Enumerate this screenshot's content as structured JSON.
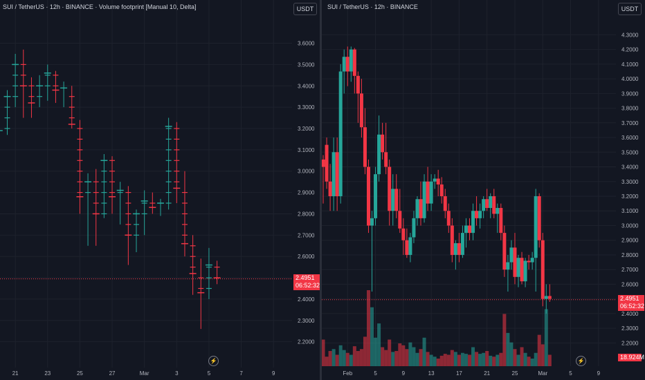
{
  "left_pane": {
    "title": "SUI / TetherUS · 12h · BINANCE · Volume footprint [Manual 10, Delta]",
    "currency_button": "USDT",
    "price_tag": "2.4951",
    "countdown": "06:52:32",
    "icon": "lightning-icon"
  },
  "right_pane": {
    "title": "SUI / TetherUS · 12h · BINANCE",
    "currency_button": "USDT",
    "price_tag": "2.4951",
    "countdown": "06:52:32",
    "volume_tag": "18.924M",
    "icon": "lightning-icon"
  },
  "colors": {
    "up": "#26a69a",
    "down": "#f23645",
    "background": "#131722",
    "grid": "#1e222d",
    "text": "#b2b5be"
  },
  "chart_data": [
    {
      "type": "footprint",
      "title": "SUI / TetherUS · 12h · BINANCE · Volume footprint [Manual 10, Delta]",
      "y_ticks": [
        "3.6000",
        "3.5000",
        "3.4000",
        "3.3000",
        "3.2000",
        "3.1000",
        "3.0000",
        "2.9000",
        "2.8000",
        "2.7000",
        "2.6000",
        "2.5000",
        "2.4000",
        "2.3000",
        "2.2000"
      ],
      "ylim": [
        2.16,
        3.66
      ],
      "x_ticks": [
        {
          "label": "21",
          "day": 21
        },
        {
          "label": "23",
          "day": 23
        },
        {
          "label": "25",
          "day": 25
        },
        {
          "label": "27",
          "day": 27
        },
        {
          "label": "Mar",
          "day": 29
        },
        {
          "label": "3",
          "day": 31
        },
        {
          "label": "5",
          "day": 33
        },
        {
          "label": "7",
          "day": 35
        },
        {
          "label": "9",
          "day": 37
        }
      ],
      "xlim": [
        20.05,
        38.15
      ],
      "last_price": 2.4951,
      "candles": [
        {
          "d": 20.0,
          "o": 3.17,
          "h": 3.22,
          "l": 3.14,
          "c": 3.19
        },
        {
          "d": 20.5,
          "o": 3.19,
          "h": 3.38,
          "l": 3.17,
          "c": 3.35
        },
        {
          "d": 21.0,
          "o": 3.35,
          "h": 3.55,
          "l": 3.3,
          "c": 3.5
        },
        {
          "d": 21.5,
          "o": 3.5,
          "h": 3.57,
          "l": 3.25,
          "c": 3.4
        },
        {
          "d": 22.0,
          "o": 3.4,
          "h": 3.44,
          "l": 3.25,
          "c": 3.32
        },
        {
          "d": 22.5,
          "o": 3.32,
          "h": 3.45,
          "l": 3.3,
          "c": 3.4
        },
        {
          "d": 23.0,
          "o": 3.4,
          "h": 3.5,
          "l": 3.33,
          "c": 3.46
        },
        {
          "d": 23.5,
          "o": 3.46,
          "h": 3.47,
          "l": 3.32,
          "c": 3.38
        },
        {
          "d": 24.0,
          "o": 3.38,
          "h": 3.42,
          "l": 3.3,
          "c": 3.39
        },
        {
          "d": 24.5,
          "o": 3.38,
          "h": 3.4,
          "l": 3.2,
          "c": 3.22
        },
        {
          "d": 25.0,
          "o": 3.22,
          "h": 3.24,
          "l": 2.8,
          "c": 2.88
        },
        {
          "d": 25.5,
          "o": 2.88,
          "h": 2.99,
          "l": 2.65,
          "c": 2.95
        },
        {
          "d": 26.0,
          "o": 2.95,
          "h": 3.01,
          "l": 2.65,
          "c": 2.8
        },
        {
          "d": 26.5,
          "o": 2.8,
          "h": 3.08,
          "l": 2.78,
          "c": 3.05
        },
        {
          "d": 27.0,
          "o": 3.05,
          "h": 3.07,
          "l": 2.8,
          "c": 2.88
        },
        {
          "d": 27.5,
          "o": 2.88,
          "h": 2.95,
          "l": 2.75,
          "c": 2.91
        },
        {
          "d": 28.0,
          "o": 2.9,
          "h": 2.93,
          "l": 2.56,
          "c": 2.7
        },
        {
          "d": 28.5,
          "o": 2.7,
          "h": 2.82,
          "l": 2.62,
          "c": 2.8
        },
        {
          "d": 29.0,
          "o": 2.8,
          "h": 2.91,
          "l": 2.7,
          "c": 2.86
        },
        {
          "d": 29.5,
          "o": 2.86,
          "h": 2.9,
          "l": 2.8,
          "c": 2.83
        },
        {
          "d": 30.0,
          "o": 2.83,
          "h": 2.87,
          "l": 2.79,
          "c": 2.85
        },
        {
          "d": 30.5,
          "o": 2.85,
          "h": 3.25,
          "l": 2.82,
          "c": 3.21
        },
        {
          "d": 31.0,
          "o": 3.21,
          "h": 3.23,
          "l": 2.85,
          "c": 2.92
        },
        {
          "d": 31.5,
          "o": 2.92,
          "h": 3.0,
          "l": 2.6,
          "c": 2.66
        },
        {
          "d": 32.0,
          "o": 2.66,
          "h": 2.7,
          "l": 2.42,
          "c": 2.52
        },
        {
          "d": 32.5,
          "o": 2.52,
          "h": 2.59,
          "l": 2.26,
          "c": 2.43
        },
        {
          "d": 33.0,
          "o": 2.43,
          "h": 2.64,
          "l": 2.4,
          "c": 2.56
        },
        {
          "d": 33.5,
          "o": 2.56,
          "h": 2.58,
          "l": 2.47,
          "c": 2.5
        }
      ]
    },
    {
      "type": "candlestick",
      "title": "SUI / TetherUS · 12h · BINANCE",
      "y_ticks": [
        "4.3000",
        "4.2000",
        "4.1000",
        "4.0000",
        "3.9000",
        "3.8000",
        "3.7000",
        "3.6000",
        "3.5000",
        "3.4000",
        "3.3000",
        "3.2000",
        "3.1000",
        "3.0000",
        "2.9000",
        "2.8000",
        "2.7000",
        "2.6000",
        "2.5000",
        "2.4000",
        "2.3000",
        "2.2000"
      ],
      "ylim": [
        2.15,
        4.33
      ],
      "x_ticks": [
        {
          "label": "Feb",
          "day": 31
        },
        {
          "label": "5",
          "day": 35
        },
        {
          "label": "9",
          "day": 39
        },
        {
          "label": "13",
          "day": 43
        },
        {
          "label": "17",
          "day": 47
        },
        {
          "label": "21",
          "day": 51
        },
        {
          "label": "25",
          "day": 55
        },
        {
          "label": "Mar",
          "day": 59
        },
        {
          "label": "5",
          "day": 63
        },
        {
          "label": "9",
          "day": 67
        }
      ],
      "xlim": [
        27.3,
        69.5
      ],
      "last_price": 2.4951,
      "volume_last": "18.924M",
      "candles": [
        {
          "d": 27.5,
          "o": 3.45,
          "h": 3.48,
          "l": 3.15,
          "c": 3.4,
          "v": 0.28
        },
        {
          "d": 28.0,
          "o": 3.55,
          "h": 3.6,
          "l": 3.25,
          "c": 3.3,
          "v": 0.1
        },
        {
          "d": 28.5,
          "o": 3.3,
          "h": 3.42,
          "l": 3.1,
          "c": 3.2,
          "v": 0.16
        },
        {
          "d": 29.0,
          "o": 3.2,
          "h": 3.6,
          "l": 3.1,
          "c": 3.5,
          "v": 0.18
        },
        {
          "d": 29.5,
          "o": 3.5,
          "h": 3.6,
          "l": 3.1,
          "c": 3.2,
          "v": 0.12
        },
        {
          "d": 30.0,
          "o": 3.2,
          "h": 4.1,
          "l": 3.15,
          "c": 4.05,
          "v": 0.22
        },
        {
          "d": 30.5,
          "o": 4.05,
          "h": 4.2,
          "l": 3.9,
          "c": 4.15,
          "v": 0.17
        },
        {
          "d": 31.0,
          "o": 4.15,
          "h": 4.22,
          "l": 3.95,
          "c": 4.05,
          "v": 0.14
        },
        {
          "d": 31.5,
          "o": 4.05,
          "h": 4.22,
          "l": 3.98,
          "c": 4.2,
          "v": 0.12
        },
        {
          "d": 32.0,
          "o": 4.2,
          "h": 4.21,
          "l": 3.9,
          "c": 4.02,
          "v": 0.21
        },
        {
          "d": 32.5,
          "o": 4.02,
          "h": 4.05,
          "l": 3.7,
          "c": 3.9,
          "v": 0.16
        },
        {
          "d": 33.0,
          "o": 3.9,
          "h": 4.0,
          "l": 3.6,
          "c": 3.67,
          "v": 0.18
        },
        {
          "d": 33.5,
          "o": 3.67,
          "h": 3.8,
          "l": 3.35,
          "c": 3.4,
          "v": 0.31
        },
        {
          "d": 34.0,
          "o": 3.4,
          "h": 3.45,
          "l": 2.95,
          "c": 3.0,
          "v": 0.8
        },
        {
          "d": 34.5,
          "o": 3.0,
          "h": 3.1,
          "l": 2.55,
          "c": 3.05,
          "v": 0.62
        },
        {
          "d": 35.0,
          "o": 3.05,
          "h": 3.4,
          "l": 3.0,
          "c": 3.35,
          "v": 0.3
        },
        {
          "d": 35.5,
          "o": 3.35,
          "h": 3.75,
          "l": 3.3,
          "c": 3.62,
          "v": 0.45
        },
        {
          "d": 36.0,
          "o": 3.62,
          "h": 3.7,
          "l": 3.45,
          "c": 3.5,
          "v": 0.2
        },
        {
          "d": 36.5,
          "o": 3.5,
          "h": 3.7,
          "l": 3.35,
          "c": 3.4,
          "v": 0.17
        },
        {
          "d": 37.0,
          "o": 3.4,
          "h": 3.45,
          "l": 3.0,
          "c": 3.1,
          "v": 0.28
        },
        {
          "d": 37.5,
          "o": 3.1,
          "h": 3.35,
          "l": 3.0,
          "c": 3.25,
          "v": 0.15
        },
        {
          "d": 38.0,
          "o": 3.25,
          "h": 3.35,
          "l": 3.05,
          "c": 3.1,
          "v": 0.16
        },
        {
          "d": 38.5,
          "o": 3.1,
          "h": 3.25,
          "l": 2.95,
          "c": 2.98,
          "v": 0.24
        },
        {
          "d": 39.0,
          "o": 2.98,
          "h": 3.05,
          "l": 2.8,
          "c": 2.9,
          "v": 0.22
        },
        {
          "d": 39.5,
          "o": 2.9,
          "h": 2.98,
          "l": 2.78,
          "c": 2.8,
          "v": 0.18
        },
        {
          "d": 40.0,
          "o": 2.8,
          "h": 2.95,
          "l": 2.75,
          "c": 2.92,
          "v": 0.25
        },
        {
          "d": 40.5,
          "o": 2.92,
          "h": 3.1,
          "l": 2.88,
          "c": 3.05,
          "v": 0.2
        },
        {
          "d": 41.0,
          "o": 3.05,
          "h": 3.2,
          "l": 3.0,
          "c": 3.18,
          "v": 0.14
        },
        {
          "d": 41.5,
          "o": 3.18,
          "h": 3.3,
          "l": 3.0,
          "c": 3.05,
          "v": 0.18
        },
        {
          "d": 42.0,
          "o": 3.05,
          "h": 3.35,
          "l": 3.02,
          "c": 3.3,
          "v": 0.3
        },
        {
          "d": 42.5,
          "o": 3.3,
          "h": 3.4,
          "l": 3.1,
          "c": 3.15,
          "v": 0.15
        },
        {
          "d": 43.0,
          "o": 3.15,
          "h": 3.35,
          "l": 3.1,
          "c": 3.3,
          "v": 0.12
        },
        {
          "d": 43.5,
          "o": 3.3,
          "h": 3.35,
          "l": 3.25,
          "c": 3.32,
          "v": 0.1
        },
        {
          "d": 44.0,
          "o": 3.32,
          "h": 3.38,
          "l": 3.2,
          "c": 3.28,
          "v": 0.08
        },
        {
          "d": 44.5,
          "o": 3.28,
          "h": 3.33,
          "l": 3.15,
          "c": 3.2,
          "v": 0.11
        },
        {
          "d": 45.0,
          "o": 3.2,
          "h": 3.25,
          "l": 3.05,
          "c": 3.1,
          "v": 0.13
        },
        {
          "d": 45.5,
          "o": 3.1,
          "h": 3.15,
          "l": 2.95,
          "c": 3.0,
          "v": 0.12
        },
        {
          "d": 46.0,
          "o": 3.0,
          "h": 3.05,
          "l": 2.75,
          "c": 2.8,
          "v": 0.17
        },
        {
          "d": 46.5,
          "o": 2.8,
          "h": 2.9,
          "l": 2.7,
          "c": 2.88,
          "v": 0.15
        },
        {
          "d": 47.0,
          "o": 2.88,
          "h": 2.95,
          "l": 2.75,
          "c": 2.8,
          "v": 0.12
        },
        {
          "d": 47.5,
          "o": 2.8,
          "h": 3.0,
          "l": 2.78,
          "c": 2.95,
          "v": 0.14
        },
        {
          "d": 48.0,
          "o": 2.95,
          "h": 3.05,
          "l": 2.85,
          "c": 3.0,
          "v": 0.13
        },
        {
          "d": 48.5,
          "o": 3.0,
          "h": 3.05,
          "l": 2.9,
          "c": 2.95,
          "v": 0.12
        },
        {
          "d": 49.0,
          "o": 2.95,
          "h": 3.15,
          "l": 2.9,
          "c": 3.1,
          "v": 0.2
        },
        {
          "d": 49.5,
          "o": 3.1,
          "h": 3.2,
          "l": 3.0,
          "c": 3.05,
          "v": 0.15
        },
        {
          "d": 50.0,
          "o": 3.05,
          "h": 3.15,
          "l": 2.98,
          "c": 3.1,
          "v": 0.13
        },
        {
          "d": 50.5,
          "o": 3.1,
          "h": 3.2,
          "l": 3.05,
          "c": 3.18,
          "v": 0.14
        },
        {
          "d": 51.0,
          "o": 3.18,
          "h": 3.25,
          "l": 3.1,
          "c": 3.12,
          "v": 0.16
        },
        {
          "d": 51.5,
          "o": 3.12,
          "h": 3.22,
          "l": 3.05,
          "c": 3.2,
          "v": 0.11
        },
        {
          "d": 52.0,
          "o": 3.2,
          "h": 3.25,
          "l": 3.05,
          "c": 3.08,
          "v": 0.1
        },
        {
          "d": 52.5,
          "o": 3.08,
          "h": 3.15,
          "l": 2.95,
          "c": 3.12,
          "v": 0.12
        },
        {
          "d": 53.0,
          "o": 3.12,
          "h": 3.15,
          "l": 2.9,
          "c": 2.95,
          "v": 0.14
        },
        {
          "d": 53.5,
          "o": 2.95,
          "h": 3.0,
          "l": 2.65,
          "c": 2.7,
          "v": 0.55
        },
        {
          "d": 54.0,
          "o": 2.7,
          "h": 2.8,
          "l": 2.55,
          "c": 2.75,
          "v": 0.35
        },
        {
          "d": 54.5,
          "o": 2.75,
          "h": 2.9,
          "l": 2.7,
          "c": 2.85,
          "v": 0.25
        },
        {
          "d": 55.0,
          "o": 2.85,
          "h": 2.95,
          "l": 2.6,
          "c": 2.65,
          "v": 0.18
        },
        {
          "d": 55.5,
          "o": 2.65,
          "h": 2.8,
          "l": 2.58,
          "c": 2.78,
          "v": 0.12
        },
        {
          "d": 56.0,
          "o": 2.78,
          "h": 2.82,
          "l": 2.6,
          "c": 2.62,
          "v": 0.2
        },
        {
          "d": 56.5,
          "o": 2.62,
          "h": 2.78,
          "l": 2.58,
          "c": 2.76,
          "v": 0.14
        },
        {
          "d": 57.0,
          "o": 2.76,
          "h": 2.8,
          "l": 2.7,
          "c": 2.75,
          "v": 0.1
        },
        {
          "d": 57.5,
          "o": 2.75,
          "h": 2.82,
          "l": 2.7,
          "c": 2.78,
          "v": 0.08
        },
        {
          "d": 58.0,
          "o": 2.78,
          "h": 3.25,
          "l": 2.55,
          "c": 3.2,
          "v": 0.14
        },
        {
          "d": 58.5,
          "o": 3.2,
          "h": 3.22,
          "l": 2.85,
          "c": 2.9,
          "v": 0.33
        },
        {
          "d": 59.0,
          "o": 2.9,
          "h": 2.95,
          "l": 2.45,
          "c": 2.5,
          "v": 0.23
        },
        {
          "d": 59.5,
          "o": 2.5,
          "h": 2.6,
          "l": 2.4,
          "c": 2.52,
          "v": 0.6
        },
        {
          "d": 60.0,
          "o": 2.52,
          "h": 2.6,
          "l": 2.48,
          "c": 2.5,
          "v": 0.12
        }
      ]
    }
  ]
}
